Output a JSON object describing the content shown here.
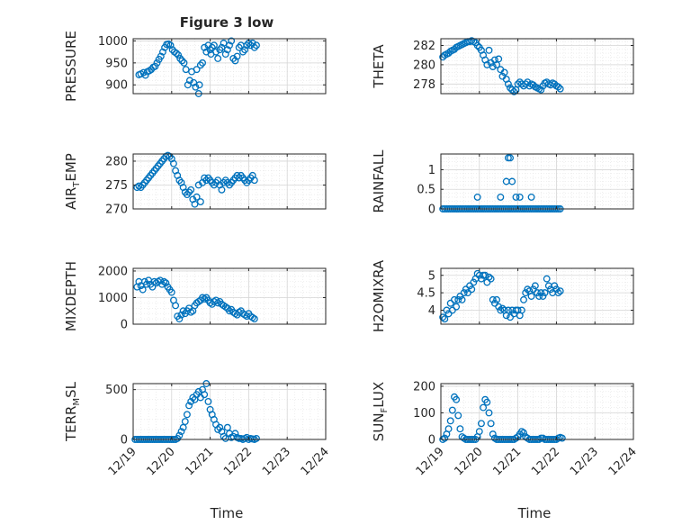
{
  "figure": {
    "title": "Figure 3 low",
    "marker_color": "#0072BD",
    "x_tick_labels": [
      "12/19",
      "12/20",
      "12/21",
      "12/22",
      "12/23",
      "12/24"
    ],
    "xlabel": "Time"
  },
  "chart_data": [
    {
      "type": "scatter",
      "ylabel": "PRESSURE",
      "xlim": [
        0,
        5
      ],
      "ylim": [
        880,
        1005
      ],
      "yticks": [
        900,
        950,
        1000
      ],
      "grid": true,
      "x": [
        0.15,
        0.2,
        0.27,
        0.32,
        0.37,
        0.42,
        0.47,
        0.52,
        0.57,
        0.62,
        0.67,
        0.72,
        0.77,
        0.82,
        0.87,
        0.92,
        0.97,
        1.02,
        1.07,
        1.12,
        1.17,
        1.22,
        1.27,
        1.32,
        1.37,
        1.42,
        1.47,
        1.52,
        1.57,
        1.62,
        1.65,
        1.7,
        1.72,
        1.75,
        1.8,
        1.85,
        1.9,
        1.95,
        2.0,
        2.02,
        2.05,
        2.1,
        2.15,
        2.2,
        2.25,
        2.3,
        2.35,
        2.4,
        2.45,
        2.5,
        2.55,
        2.6,
        2.65,
        2.7,
        2.75,
        2.8,
        2.85,
        2.9,
        2.95,
        3.0,
        3.05,
        3.1,
        3.15,
        3.2
      ],
      "y": [
        923,
        925,
        928,
        922,
        930,
        932,
        935,
        940,
        942,
        950,
        958,
        965,
        975,
        985,
        992,
        993,
        990,
        980,
        975,
        972,
        968,
        960,
        955,
        950,
        935,
        900,
        910,
        930,
        905,
        895,
        935,
        880,
        900,
        945,
        950,
        985,
        975,
        990,
        980,
        970,
        985,
        990,
        975,
        960,
        980,
        985,
        995,
        970,
        980,
        990,
        1000,
        960,
        955,
        965,
        985,
        990,
        975,
        980,
        990,
        995,
        990,
        995,
        985,
        990
      ]
    },
    {
      "type": "scatter",
      "ylabel": "THETA",
      "xlim": [
        0,
        5
      ],
      "ylim": [
        277,
        282.7
      ],
      "yticks": [
        278,
        280,
        282
      ],
      "grid": true,
      "x": [
        0.05,
        0.1,
        0.15,
        0.2,
        0.25,
        0.3,
        0.35,
        0.4,
        0.45,
        0.5,
        0.55,
        0.6,
        0.65,
        0.7,
        0.75,
        0.8,
        0.85,
        0.9,
        0.95,
        1.0,
        1.05,
        1.1,
        1.15,
        1.2,
        1.25,
        1.3,
        1.35,
        1.4,
        1.45,
        1.5,
        1.55,
        1.6,
        1.65,
        1.7,
        1.75,
        1.8,
        1.85,
        1.9,
        1.95,
        2.0,
        2.05,
        2.1,
        2.15,
        2.2,
        2.25,
        2.3,
        2.35,
        2.4,
        2.45,
        2.5,
        2.55,
        2.6,
        2.65,
        2.7,
        2.75,
        2.8,
        2.85,
        2.9,
        2.95,
        3.0,
        3.05,
        3.1
      ],
      "y": [
        280.8,
        281.0,
        281.1,
        281.2,
        281.4,
        281.5,
        281.6,
        281.8,
        281.9,
        282.0,
        282.1,
        282.2,
        282.3,
        282.4,
        282.4,
        282.5,
        282.4,
        282.3,
        282.0,
        281.8,
        281.5,
        281.0,
        280.5,
        280.0,
        281.5,
        280.2,
        279.8,
        280.5,
        280.0,
        280.6,
        279.5,
        278.8,
        279.2,
        278.5,
        278.0,
        277.6,
        277.4,
        277.2,
        277.4,
        278.0,
        278.2,
        278.0,
        277.8,
        278.0,
        278.2,
        277.8,
        278.0,
        277.9,
        277.7,
        277.6,
        277.5,
        277.4,
        277.8,
        278.1,
        278.2,
        278.0,
        277.9,
        278.1,
        278.0,
        277.8,
        277.7,
        277.5
      ]
    },
    {
      "type": "scatter",
      "ylabel": "AIR_TEMP",
      "xlim": [
        0,
        5
      ],
      "ylim": [
        270,
        281.5
      ],
      "yticks": [
        270,
        275,
        280
      ],
      "grid": true,
      "x": [
        0.1,
        0.15,
        0.2,
        0.25,
        0.3,
        0.35,
        0.4,
        0.45,
        0.5,
        0.55,
        0.6,
        0.65,
        0.7,
        0.75,
        0.8,
        0.85,
        0.9,
        0.95,
        1.0,
        1.05,
        1.1,
        1.15,
        1.2,
        1.25,
        1.3,
        1.35,
        1.4,
        1.45,
        1.5,
        1.55,
        1.6,
        1.65,
        1.7,
        1.75,
        1.8,
        1.85,
        1.9,
        1.95,
        2.0,
        2.05,
        2.1,
        2.15,
        2.2,
        2.25,
        2.3,
        2.35,
        2.4,
        2.45,
        2.5,
        2.55,
        2.6,
        2.65,
        2.7,
        2.75,
        2.8,
        2.85,
        2.9,
        2.95,
        3.0,
        3.05,
        3.1,
        3.15
      ],
      "y": [
        274.5,
        274.8,
        274.5,
        275.0,
        275.5,
        276.0,
        276.5,
        277.0,
        277.5,
        278.0,
        278.5,
        279.0,
        279.5,
        280.0,
        280.5,
        281.0,
        281.2,
        281.0,
        280.5,
        279.5,
        278.0,
        277.0,
        276.0,
        275.5,
        274.5,
        273.5,
        273.0,
        273.5,
        274.0,
        272.0,
        271.0,
        272.5,
        275.0,
        271.5,
        275.5,
        276.5,
        276.0,
        276.5,
        276.0,
        275.5,
        275.0,
        275.5,
        276.0,
        275.0,
        274.0,
        275.5,
        276.0,
        275.5,
        275.0,
        275.5,
        276.0,
        276.5,
        277.0,
        276.5,
        277.0,
        276.5,
        276.0,
        275.5,
        276.0,
        276.5,
        277.0,
        276.0
      ]
    },
    {
      "type": "scatter",
      "ylabel": "RAINFALL",
      "xlim": [
        0,
        5
      ],
      "ylim": [
        0,
        1.4
      ],
      "yticks": [
        0,
        0.5,
        1
      ],
      "grid": true,
      "x": [
        0.05,
        0.1,
        0.15,
        0.2,
        0.25,
        0.3,
        0.35,
        0.4,
        0.45,
        0.5,
        0.55,
        0.6,
        0.65,
        0.7,
        0.75,
        0.8,
        0.85,
        0.9,
        0.95,
        1.0,
        1.05,
        1.1,
        1.15,
        1.2,
        1.25,
        1.3,
        1.35,
        1.4,
        1.45,
        1.5,
        1.55,
        1.6,
        1.65,
        1.7,
        1.75,
        1.8,
        1.85,
        1.9,
        1.95,
        2.0,
        2.05,
        2.1,
        2.15,
        2.2,
        2.25,
        2.3,
        2.35,
        2.4,
        2.45,
        2.5,
        2.55,
        2.6,
        2.65,
        2.7,
        2.75,
        2.8,
        2.85,
        2.9,
        2.95,
        3.0,
        3.05,
        3.1,
        0.95,
        1.55,
        2.05,
        2.35,
        1.7,
        1.75,
        1.8,
        1.85,
        1.95
      ],
      "y": [
        0,
        0,
        0,
        0,
        0,
        0,
        0,
        0,
        0,
        0,
        0,
        0,
        0,
        0,
        0,
        0,
        0,
        0,
        0,
        0,
        0,
        0,
        0,
        0,
        0,
        0,
        0,
        0,
        0,
        0,
        0,
        0,
        0,
        0,
        0,
        0,
        0,
        0,
        0,
        0,
        0,
        0,
        0,
        0,
        0,
        0,
        0,
        0,
        0,
        0,
        0,
        0,
        0,
        0,
        0,
        0,
        0,
        0,
        0,
        0,
        0,
        0,
        0.3,
        0.3,
        0.3,
        0.3,
        0.7,
        1.3,
        1.3,
        0.7,
        0.3
      ]
    },
    {
      "type": "scatter",
      "ylabel": "MIXDEPTH",
      "xlim": [
        0,
        5
      ],
      "ylim": [
        0,
        2100
      ],
      "yticks": [
        0,
        1000,
        2000
      ],
      "grid": true,
      "x": [
        0.1,
        0.15,
        0.2,
        0.25,
        0.3,
        0.35,
        0.4,
        0.45,
        0.5,
        0.55,
        0.6,
        0.65,
        0.7,
        0.75,
        0.8,
        0.85,
        0.9,
        0.95,
        1.0,
        1.05,
        1.1,
        1.15,
        1.2,
        1.25,
        1.3,
        1.35,
        1.4,
        1.45,
        1.5,
        1.55,
        1.6,
        1.65,
        1.7,
        1.75,
        1.8,
        1.85,
        1.9,
        1.95,
        2.0,
        2.05,
        2.1,
        2.15,
        2.2,
        2.25,
        2.3,
        2.35,
        2.4,
        2.45,
        2.5,
        2.55,
        2.6,
        2.65,
        2.7,
        2.75,
        2.8,
        2.85,
        2.9,
        2.95,
        3.0,
        3.05,
        3.1,
        3.15
      ],
      "y": [
        1400,
        1600,
        1450,
        1300,
        1600,
        1500,
        1650,
        1500,
        1400,
        1600,
        1550,
        1600,
        1650,
        1500,
        1600,
        1550,
        1400,
        1300,
        1200,
        900,
        700,
        300,
        200,
        350,
        500,
        400,
        500,
        600,
        450,
        500,
        700,
        800,
        850,
        900,
        1000,
        950,
        1000,
        900,
        800,
        750,
        850,
        900,
        800,
        850,
        750,
        700,
        650,
        600,
        500,
        550,
        450,
        400,
        350,
        450,
        500,
        400,
        350,
        300,
        400,
        300,
        250,
        200
      ]
    },
    {
      "type": "scatter",
      "ylabel": "H2OMIXRA",
      "xlim": [
        0,
        5
      ],
      "ylim": [
        3.6,
        5.2
      ],
      "yticks": [
        4,
        4.5,
        5
      ],
      "grid": true,
      "x": [
        0.05,
        0.1,
        0.15,
        0.2,
        0.25,
        0.3,
        0.35,
        0.4,
        0.45,
        0.5,
        0.55,
        0.6,
        0.65,
        0.7,
        0.75,
        0.8,
        0.85,
        0.9,
        0.95,
        1.0,
        1.05,
        1.1,
        1.15,
        1.2,
        1.25,
        1.3,
        1.35,
        1.4,
        1.45,
        1.5,
        1.55,
        1.6,
        1.65,
        1.7,
        1.75,
        1.8,
        1.85,
        1.9,
        1.95,
        2.0,
        2.05,
        2.1,
        2.15,
        2.2,
        2.25,
        2.3,
        2.35,
        2.4,
        2.45,
        2.5,
        2.55,
        2.6,
        2.65,
        2.7,
        2.75,
        2.8,
        2.85,
        2.9,
        2.95,
        3.0,
        3.05,
        3.1
      ],
      "y": [
        3.8,
        3.75,
        4.0,
        3.9,
        4.2,
        4.0,
        4.3,
        4.1,
        4.3,
        4.4,
        4.3,
        4.5,
        4.6,
        4.5,
        4.7,
        4.6,
        4.8,
        4.9,
        5.05,
        5.0,
        4.9,
        5.0,
        5.0,
        4.8,
        4.95,
        4.9,
        4.3,
        4.2,
        4.3,
        4.1,
        4.0,
        4.05,
        4.0,
        3.85,
        4.0,
        3.8,
        4.0,
        3.9,
        4.0,
        4.0,
        3.85,
        4.0,
        4.3,
        4.5,
        4.6,
        4.55,
        4.4,
        4.6,
        4.7,
        4.5,
        4.4,
        4.5,
        4.4,
        4.5,
        4.9,
        4.7,
        4.6,
        4.5,
        4.7,
        4.6,
        4.5,
        4.55
      ]
    },
    {
      "type": "scatter",
      "ylabel": "TERR_MSL",
      "xlim": [
        0,
        5
      ],
      "ylim": [
        0,
        560
      ],
      "yticks": [
        0,
        500
      ],
      "grid": true,
      "x": [
        0.05,
        0.1,
        0.15,
        0.2,
        0.25,
        0.3,
        0.35,
        0.4,
        0.45,
        0.5,
        0.55,
        0.6,
        0.65,
        0.7,
        0.75,
        0.8,
        0.85,
        0.9,
        0.95,
        1.0,
        1.05,
        1.1,
        1.15,
        1.2,
        1.25,
        1.3,
        1.35,
        1.4,
        1.45,
        1.5,
        1.55,
        1.6,
        1.65,
        1.7,
        1.75,
        1.8,
        1.85,
        1.9,
        1.95,
        2.0,
        2.05,
        2.1,
        2.15,
        2.2,
        2.25,
        2.3,
        2.35,
        2.4,
        2.45,
        2.5,
        2.55,
        2.6,
        2.65,
        2.7,
        2.75,
        2.8,
        2.85,
        2.9,
        2.95,
        3.0,
        3.05,
        3.1,
        3.15,
        3.2
      ],
      "y": [
        0,
        0,
        0,
        0,
        0,
        0,
        0,
        0,
        0,
        0,
        0,
        0,
        0,
        0,
        0,
        0,
        0,
        0,
        0,
        0,
        0,
        0,
        10,
        40,
        80,
        120,
        180,
        250,
        340,
        380,
        420,
        400,
        450,
        480,
        420,
        500,
        450,
        560,
        380,
        300,
        250,
        200,
        150,
        100,
        120,
        80,
        30,
        10,
        120,
        60,
        20,
        30,
        60,
        20,
        10,
        10,
        0,
        10,
        20,
        0,
        10,
        5,
        0,
        10
      ]
    },
    {
      "type": "scatter",
      "ylabel": "SUN_FLUX",
      "xlim": [
        0,
        5
      ],
      "ylim": [
        0,
        210
      ],
      "yticks": [
        0,
        100,
        200
      ],
      "grid": true,
      "x": [
        0.05,
        0.1,
        0.15,
        0.2,
        0.25,
        0.3,
        0.35,
        0.4,
        0.45,
        0.5,
        0.55,
        0.6,
        0.65,
        0.7,
        0.75,
        0.8,
        0.85,
        0.9,
        0.95,
        1.0,
        1.05,
        1.1,
        1.15,
        1.2,
        1.25,
        1.3,
        1.35,
        1.4,
        1.45,
        1.5,
        1.55,
        1.6,
        1.65,
        1.7,
        1.75,
        1.8,
        1.85,
        1.9,
        1.95,
        2.0,
        2.05,
        2.1,
        2.15,
        2.2,
        2.25,
        2.3,
        2.35,
        2.4,
        2.45,
        2.5,
        2.55,
        2.6,
        2.65,
        2.7,
        2.75,
        2.8,
        2.85,
        2.9,
        2.95,
        3.0,
        3.05,
        3.1,
        3.15
      ],
      "y": [
        0,
        5,
        20,
        40,
        70,
        110,
        160,
        150,
        90,
        40,
        10,
        5,
        0,
        0,
        0,
        0,
        0,
        0,
        10,
        30,
        60,
        120,
        150,
        140,
        100,
        60,
        20,
        5,
        0,
        0,
        0,
        0,
        0,
        0,
        0,
        0,
        0,
        0,
        5,
        10,
        20,
        30,
        25,
        10,
        5,
        0,
        0,
        0,
        0,
        0,
        0,
        5,
        5,
        0,
        0,
        0,
        0,
        0,
        0,
        0,
        5,
        8,
        5
      ]
    }
  ]
}
